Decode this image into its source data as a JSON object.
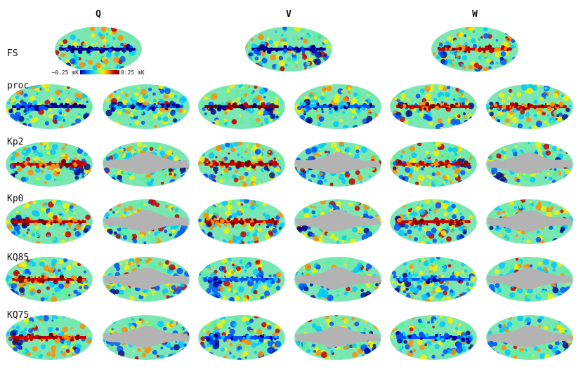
{
  "columns": [
    "Q",
    "V",
    "W"
  ],
  "rows": [
    "FS",
    "proc",
    "Kp2",
    "Kp0",
    "KQ85",
    "KQ75"
  ],
  "colorbar": {
    "min_label": "−0.25 mK",
    "max_label": "0.25 mK"
  },
  "maps": {
    "FS": [
      {
        "band": "Q",
        "masked": false,
        "plane": "dark-blue"
      },
      {
        "band": "V",
        "masked": false,
        "plane": "dark-blue"
      },
      {
        "band": "W",
        "masked": false,
        "plane": "red"
      }
    ],
    "proc": [
      {
        "masked": false,
        "plane": "dark-blue"
      },
      {
        "masked": false,
        "plane": "blue"
      },
      {
        "masked": false,
        "plane": "dark"
      },
      {
        "masked": false,
        "plane": "blue"
      },
      {
        "masked": false,
        "plane": "red"
      },
      {
        "masked": false,
        "plane": "red"
      }
    ],
    "Kp2": [
      {
        "masked": false,
        "plane": "red"
      },
      {
        "masked": true
      },
      {
        "masked": false,
        "plane": "red"
      },
      {
        "masked": true
      },
      {
        "masked": false,
        "plane": "red"
      },
      {
        "masked": true
      }
    ],
    "Kp0": [
      {
        "masked": false,
        "plane": "red"
      },
      {
        "masked": true
      },
      {
        "masked": false,
        "plane": "red"
      },
      {
        "masked": true
      },
      {
        "masked": false,
        "plane": "red"
      },
      {
        "masked": true
      }
    ],
    "KQ85": [
      {
        "masked": false,
        "plane": "red"
      },
      {
        "masked": true
      },
      {
        "masked": false,
        "plane": "blue"
      },
      {
        "masked": true
      },
      {
        "masked": false,
        "plane": "blue"
      },
      {
        "masked": true
      }
    ],
    "KQ75": [
      {
        "masked": false,
        "plane": "red"
      },
      {
        "masked": true
      },
      {
        "masked": false,
        "plane": "blue"
      },
      {
        "masked": true
      },
      {
        "masked": false,
        "plane": "blue"
      },
      {
        "masked": true
      }
    ]
  },
  "colors": {
    "mask": "#b3b3b3",
    "colormap": [
      "#00008a",
      "#0050ff",
      "#00c8ff",
      "#5cf0a0",
      "#f5f000",
      "#ff8c00",
      "#c80000",
      "#7a0000"
    ]
  }
}
